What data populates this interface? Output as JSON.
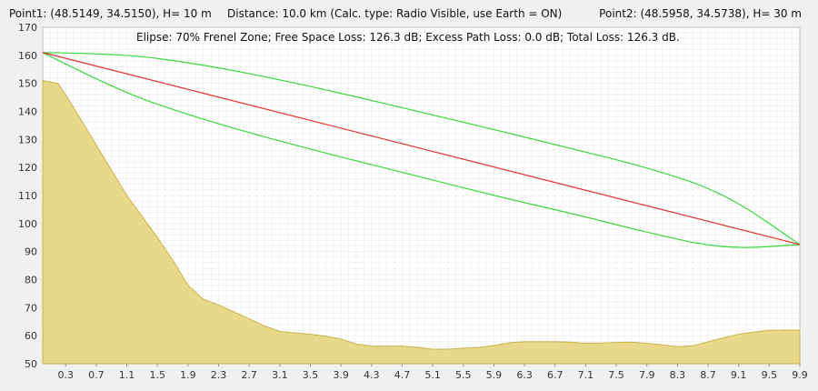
{
  "header": {
    "point1": "Point1: (48.5149, 34.5150), H= 10 m",
    "distance": "Distance: 10.0 km (Calc. type: Radio Visible, use Earth = ON)",
    "point2": "Point2: (48.5958, 34.5738), H= 30 m"
  },
  "stats_line": "Elipse: 70% Frenel Zone;  Free Space Loss: 126.3 dB;  Excess Path Loss: 0.0 dB;   Total Loss: 126.3 dB.",
  "colors": {
    "terrain_fill": "#e8d98a",
    "terrain_stroke": "#c9b34a",
    "los_line": "#e53030",
    "fresnel": "#39d939",
    "grid": "#e6e6e6",
    "plot_bg": "#ffffff"
  },
  "chart_data": {
    "type": "area",
    "xlim": [
      0,
      9.9
    ],
    "ylim": [
      50,
      170
    ],
    "x_ticks": [
      "0.3",
      "0.7",
      "1.1",
      "1.5",
      "1.9",
      "2.3",
      "2.7",
      "3.1",
      "3.5",
      "3.9",
      "4.3",
      "4.7",
      "5.1",
      "5.5",
      "5.9",
      "6.3",
      "6.7",
      "7.1",
      "7.5",
      "7.9",
      "8.3",
      "8.7",
      "9.1",
      "9.5",
      "9.9"
    ],
    "y_ticks": [
      "50",
      "60",
      "70",
      "80",
      "90",
      "100",
      "110",
      "120",
      "130",
      "140",
      "150",
      "160",
      "170"
    ],
    "terrain": {
      "x": [
        0,
        0.2,
        0.3,
        0.5,
        0.7,
        0.9,
        1.1,
        1.3,
        1.5,
        1.7,
        1.9,
        2.1,
        2.2,
        2.3,
        2.5,
        2.7,
        2.9,
        3.1,
        3.3,
        3.5,
        3.7,
        3.9,
        4.1,
        4.3,
        4.5,
        4.7,
        4.9,
        5.1,
        5.3,
        5.5,
        5.7,
        5.9,
        6.1,
        6.3,
        6.5,
        6.7,
        6.9,
        7.1,
        7.3,
        7.5,
        7.7,
        7.9,
        8.1,
        8.3,
        8.5,
        8.7,
        8.9,
        9.1,
        9.3,
        9.5,
        9.7,
        9.9
      ],
      "y": [
        151,
        150,
        146,
        137,
        128,
        119,
        110,
        102.5,
        95,
        87,
        78,
        73,
        72,
        71,
        68.5,
        66,
        63.5,
        61.5,
        61,
        60.5,
        59.8,
        58.8,
        57,
        56.3,
        56.3,
        56.3,
        55.8,
        55.2,
        55.2,
        55.5,
        55.8,
        56.5,
        57.5,
        57.8,
        57.8,
        57.8,
        57.7,
        57.3,
        57.4,
        57.6,
        57.7,
        57.3,
        56.7,
        56.1,
        56.4,
        57.8,
        59.2,
        60.5,
        61.3,
        61.9,
        62,
        62
      ]
    },
    "line_of_sight": {
      "x": [
        0,
        9.9
      ],
      "y": [
        161,
        92.5
      ]
    },
    "fresnel_ellipse": {
      "x": [
        0,
        0.99,
        1.98,
        2.97,
        3.96,
        4.95,
        5.94,
        6.93,
        7.92,
        8.91,
        9.9
      ],
      "upper": [
        161,
        160.7,
        157.2,
        152.1,
        146.1,
        139.7,
        133.3,
        126.6,
        119.9,
        111.0,
        92.5
      ],
      "lower": [
        161,
        147.3,
        138.1,
        130.3,
        123.3,
        116.6,
        109.7,
        103.5,
        96.7,
        90.8,
        92.5
      ]
    }
  }
}
